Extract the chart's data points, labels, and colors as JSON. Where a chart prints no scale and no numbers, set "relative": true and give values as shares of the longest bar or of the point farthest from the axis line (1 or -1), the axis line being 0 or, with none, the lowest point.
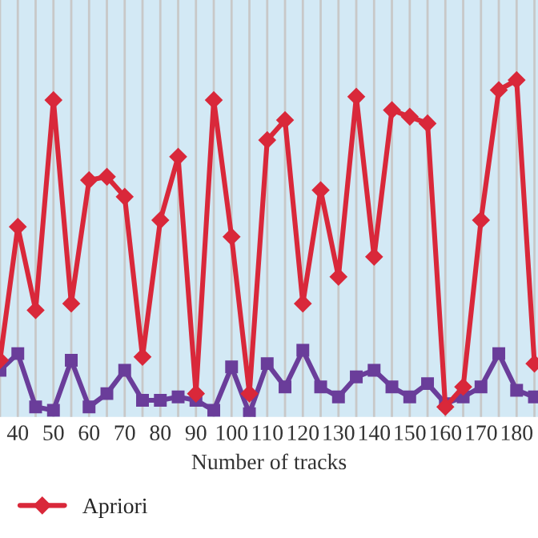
{
  "chart_data": {
    "type": "line",
    "relative": true,
    "xlabel": "Number of tracks",
    "x": [
      35,
      40,
      45,
      50,
      55,
      60,
      65,
      70,
      75,
      80,
      85,
      90,
      95,
      100,
      105,
      110,
      115,
      120,
      125,
      130,
      135,
      140,
      145,
      150,
      155,
      160,
      165,
      170,
      175,
      180,
      185
    ],
    "xlim": [
      35,
      186
    ],
    "xticks": [
      {
        "value": 35,
        "label": null
      },
      40,
      {
        "value": 45,
        "label": null
      },
      50,
      {
        "value": 55,
        "label": null
      },
      60,
      {
        "value": 65,
        "label": null
      },
      70,
      {
        "value": 75,
        "label": null
      },
      80,
      {
        "value": 85,
        "label": null
      },
      90,
      {
        "value": 95,
        "label": null
      },
      100,
      {
        "value": 105,
        "label": null
      },
      110,
      {
        "value": 115,
        "label": null
      },
      120,
      {
        "value": 125,
        "label": null
      },
      130,
      {
        "value": 135,
        "label": null
      },
      140,
      {
        "value": 145,
        "label": null
      },
      150,
      {
        "value": 155,
        "label": null
      },
      160,
      {
        "value": 165,
        "label": null
      },
      170,
      {
        "value": 175,
        "label": null
      },
      180,
      {
        "value": 185,
        "label": null
      }
    ],
    "series": [
      {
        "name": "Apriori",
        "color": "#d9283a",
        "marker": "diamond",
        "values": [
          0.16,
          0.56,
          0.31,
          0.94,
          0.33,
          0.7,
          0.71,
          0.65,
          0.17,
          0.58,
          0.77,
          0.06,
          0.94,
          0.53,
          0.06,
          0.82,
          0.88,
          0.33,
          0.67,
          0.41,
          0.95,
          0.47,
          0.91,
          0.89,
          0.87,
          0.02,
          0.08,
          0.58,
          0.97,
          1,
          0.15
        ]
      },
      {
        "color": "#6a3d9a",
        "marker": "square",
        "values": [
          0.13,
          0.18,
          0.02,
          0.01,
          0.16,
          0.02,
          0.06,
          0.13,
          0.04,
          0.04,
          0.05,
          0.04,
          0.01,
          0.14,
          0,
          0.15,
          0.08,
          0.19,
          0.08,
          0.05,
          0.11,
          0.13,
          0.08,
          0.05,
          0.09,
          0.03,
          0.05,
          0.08,
          0.18,
          0.07,
          0.05
        ]
      }
    ],
    "grid": "x",
    "legend": "bottom left",
    "line_style": "solid"
  }
}
